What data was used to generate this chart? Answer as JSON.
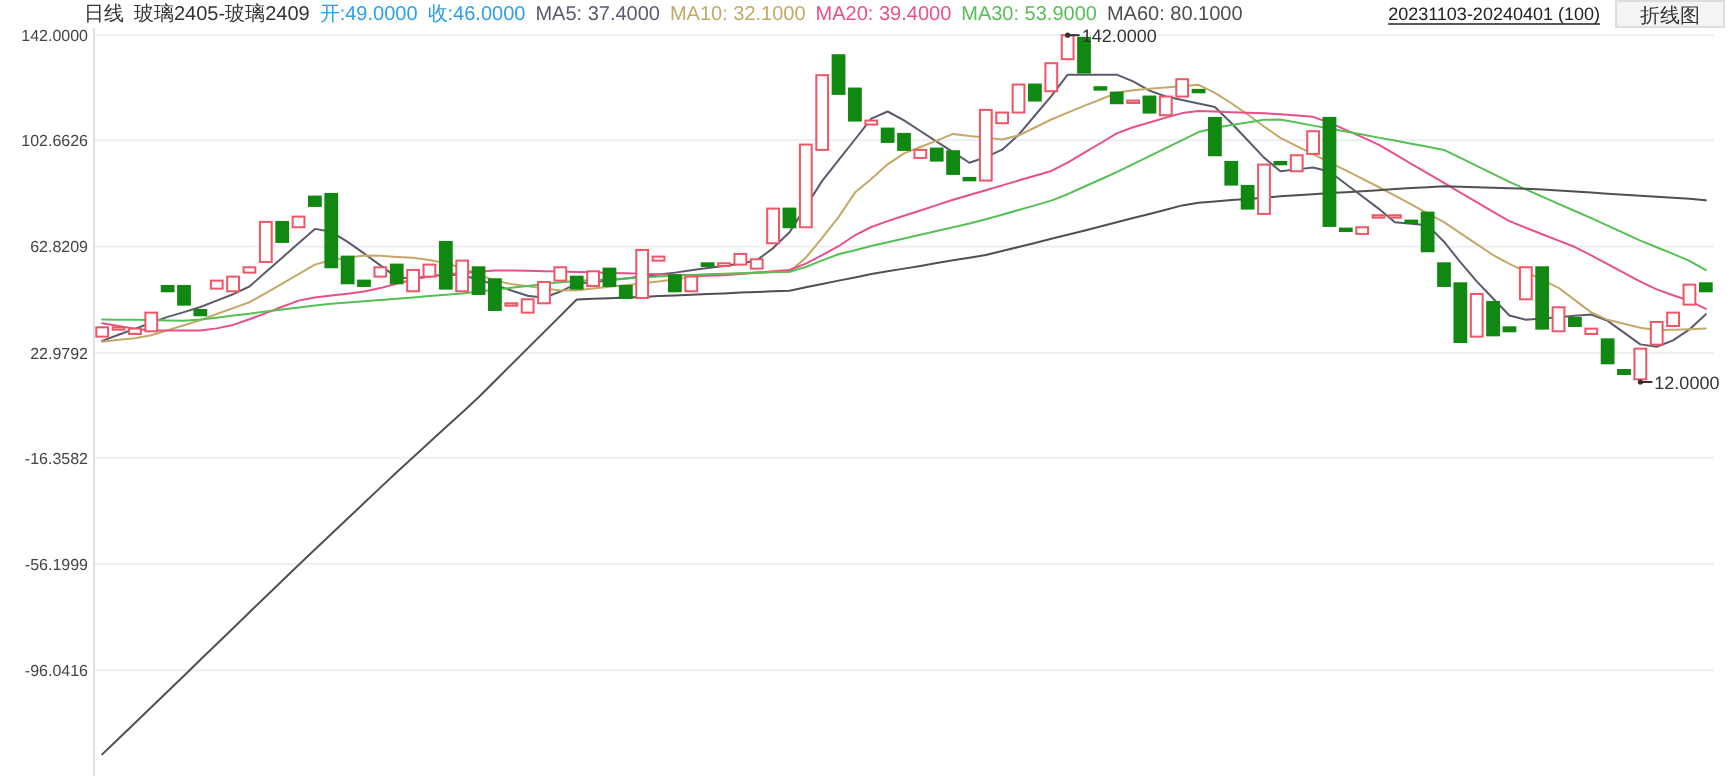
{
  "chart_data": {
    "type": "candlestick",
    "title": "日线",
    "subtitle": "玻璃2405-玻璃2409",
    "annotations": [
      "开:49.0000",
      "收:46.0000",
      "20231103-20240401 (100)",
      "折线图",
      "142.0000",
      "12.0000"
    ],
    "categories": [
      null,
      null,
      null,
      null,
      null,
      null,
      null,
      null,
      null,
      null,
      null,
      null,
      null,
      null,
      null,
      null,
      null,
      null,
      null,
      null,
      null,
      null,
      null,
      null,
      null,
      null,
      null,
      null,
      null,
      null,
      null,
      null,
      null,
      null,
      null,
      null,
      null,
      null,
      null,
      null,
      null,
      null,
      null,
      null,
      null,
      null,
      null,
      null,
      null,
      null,
      null,
      null,
      null,
      null,
      null,
      null,
      null,
      null,
      null,
      null,
      null,
      null,
      null,
      null,
      null,
      null,
      null,
      null,
      null,
      null,
      null,
      null,
      null,
      null,
      null,
      null,
      null,
      null,
      null,
      null,
      null,
      null,
      null,
      null,
      null,
      null,
      null,
      null,
      null,
      null,
      null,
      null,
      null,
      null,
      null,
      null,
      null,
      null,
      null
    ],
    "ylim": [
      -135.7,
      144.7
    ],
    "yticks": [
      {
        "value": 142,
        "label": "142.0000"
      },
      {
        "value": 102.6626,
        "label": "102.6626"
      },
      {
        "value": 62.8209,
        "label": "62.8209"
      },
      {
        "value": 22.9792,
        "label": "22.9792"
      },
      {
        "value": -16.3582,
        "label": "-16.3582"
      },
      {
        "value": -56.1999,
        "label": "-56.1999"
      },
      {
        "value": -96.0416,
        "label": "-96.0416"
      }
    ],
    "grid": "y",
    "series": [
      {
        "ohlc": [
          [
            29,
            32.5,
            29,
            32.5
          ],
          [
            32,
            32.5,
            32,
            32.5
          ],
          [
            30,
            32,
            30,
            32
          ],
          [
            31,
            38,
            31,
            38
          ],
          [
            48,
            48,
            46,
            46
          ],
          [
            48,
            48,
            41,
            41
          ],
          [
            39,
            39,
            37,
            37
          ],
          [
            47,
            50,
            47,
            50
          ],
          [
            46,
            51.5,
            46,
            51.5
          ],
          [
            53,
            55,
            53,
            55
          ],
          [
            57,
            72,
            57,
            72
          ],
          [
            72,
            72,
            64.5,
            64.5
          ],
          [
            70,
            74,
            70,
            74
          ],
          [
            81.5,
            81.5,
            78,
            78
          ],
          [
            82.5,
            82.5,
            55,
            55
          ],
          [
            59,
            59,
            49,
            49
          ],
          [
            50,
            50,
            48,
            48
          ],
          [
            51.5,
            55,
            51.5,
            55
          ],
          [
            56,
            56,
            49,
            49
          ],
          [
            46,
            54,
            46,
            54
          ],
          [
            51.5,
            56,
            51.5,
            56
          ],
          [
            64.5,
            64.5,
            47,
            47
          ],
          [
            46,
            57.5,
            46,
            57.5
          ],
          [
            55,
            55,
            45,
            45
          ],
          [
            50.5,
            50.5,
            39,
            39
          ],
          [
            41,
            41.5,
            41,
            41.5
          ],
          [
            38,
            43,
            38,
            43
          ],
          [
            41.5,
            49.5,
            41.5,
            49.5
          ],
          [
            50,
            55,
            50,
            55
          ],
          [
            51.5,
            51.5,
            47,
            47
          ],
          [
            48,
            53.5,
            48,
            53.5
          ],
          [
            54.5,
            54.5,
            48,
            48
          ],
          [
            48,
            48,
            43.5,
            43.5
          ],
          [
            43.5,
            61.5,
            43.5,
            61.5
          ],
          [
            57.5,
            59,
            57.5,
            59
          ],
          [
            52,
            52,
            46,
            46
          ],
          [
            46,
            51.5,
            46,
            51.5
          ],
          [
            56.5,
            56.5,
            55.5,
            55.5
          ],
          [
            55.5,
            56.5,
            55.5,
            56.5
          ],
          [
            56,
            60,
            56,
            60
          ],
          [
            54.5,
            58,
            54.5,
            58
          ],
          [
            64,
            77,
            64,
            77
          ],
          [
            77,
            77,
            70,
            70
          ],
          [
            70,
            101,
            70,
            101
          ],
          [
            99,
            127,
            99,
            127
          ],
          [
            134.5,
            134.5,
            120,
            120
          ],
          [
            122,
            122,
            110,
            110
          ],
          [
            108.5,
            110,
            108.5,
            110
          ],
          [
            107,
            107,
            102,
            102
          ],
          [
            105,
            105,
            99,
            99
          ],
          [
            96,
            99,
            96,
            99
          ],
          [
            99.5,
            99.5,
            95,
            95
          ],
          [
            98.5,
            98.5,
            90,
            90
          ],
          [
            88.5,
            88.5,
            88,
            88
          ],
          [
            87.5,
            114,
            87.5,
            114
          ],
          [
            109,
            113,
            109,
            113
          ],
          [
            113,
            123.5,
            113,
            123.5
          ],
          [
            123.5,
            123.5,
            117.5,
            117.5
          ],
          [
            121,
            131.5,
            121,
            131.5
          ],
          [
            133,
            142,
            133,
            142
          ],
          [
            141,
            141,
            128,
            128
          ],
          [
            122.5,
            122.5,
            122,
            122
          ],
          [
            120.5,
            120.5,
            116.5,
            116.5
          ],
          [
            117,
            117.5,
            117,
            117.5
          ],
          [
            119,
            119,
            113,
            113
          ],
          [
            112,
            119,
            112,
            119
          ],
          [
            119,
            125.5,
            119,
            125.5
          ],
          [
            121.5,
            121.5,
            121,
            121
          ],
          [
            111,
            111,
            97,
            97
          ],
          [
            94.5,
            94.5,
            86,
            86
          ],
          [
            85.5,
            85.5,
            77,
            77
          ],
          [
            75,
            93.5,
            75,
            93.5
          ],
          [
            94.5,
            94.5,
            94,
            94
          ],
          [
            91,
            97,
            91,
            97
          ],
          [
            97.5,
            106,
            97.5,
            106
          ],
          [
            111,
            111,
            70.5,
            70.5
          ],
          [
            69.5,
            69.5,
            69,
            69
          ],
          [
            67.5,
            70,
            67.5,
            70
          ],
          [
            74,
            74.5,
            74,
            74.5
          ],
          [
            74,
            74.5,
            74,
            74.5
          ],
          [
            72.5,
            72.5,
            72,
            72
          ],
          [
            75.5,
            75.5,
            61,
            61
          ],
          [
            56.5,
            56.5,
            48,
            48
          ],
          [
            49,
            49,
            27,
            27
          ],
          [
            29,
            45,
            29,
            45
          ],
          [
            42,
            42,
            29.5,
            29.5
          ],
          [
            32.5,
            32.5,
            31,
            31
          ],
          [
            43,
            55,
            43,
            55
          ],
          [
            55,
            55,
            32,
            32
          ],
          [
            31,
            40,
            31,
            40
          ],
          [
            36,
            36,
            33,
            33
          ],
          [
            30,
            32,
            30,
            32
          ],
          [
            28,
            28,
            19,
            19
          ],
          [
            16.5,
            16.5,
            15,
            15
          ],
          [
            13,
            24.5,
            12,
            24.5
          ],
          [
            26,
            34.5,
            26,
            34.5
          ],
          [
            33,
            38,
            33,
            38
          ],
          [
            41,
            48.5,
            41,
            48.5
          ],
          [
            49,
            49,
            46,
            46
          ]
        ],
        "colors": [
          "#ee5566",
          "#ee5566",
          "#ee5566",
          "#ee5566",
          "#118811",
          "#118811",
          "#118811",
          "#ee5566",
          "#ee5566",
          "#ee5566",
          "#ee5566",
          "#118811",
          "#ee5566",
          "#118811",
          "#118811",
          "#118811",
          "#118811",
          "#ee5566",
          "#118811",
          "#ee5566",
          "#ee5566",
          "#118811",
          "#ee5566",
          "#118811",
          "#118811",
          "#ee5566",
          "#ee5566",
          "#ee5566",
          "#ee5566",
          "#118811",
          "#ee5566",
          "#118811",
          "#118811",
          "#ee5566",
          "#ee5566",
          "#118811",
          "#ee5566",
          "#118811",
          "#ee5566",
          "#ee5566",
          "#ee5566",
          "#ee5566",
          "#118811",
          "#ee5566",
          "#ee5566",
          "#118811",
          "#118811",
          "#ee5566",
          "#118811",
          "#118811",
          "#ee5566",
          "#118811",
          "#118811",
          "#118811",
          "#ee5566",
          "#ee5566",
          "#ee5566",
          "#118811",
          "#ee5566",
          "#ee5566",
          "#118811",
          "#118811",
          "#118811",
          "#ee5566",
          "#118811",
          "#ee5566",
          "#ee5566",
          "#118811",
          "#118811",
          "#118811",
          "#118811",
          "#ee5566",
          "#118811",
          "#ee5566",
          "#ee5566",
          "#118811",
          "#118811",
          "#ee5566",
          "#ee5566",
          "#ee5566",
          "#118811",
          "#118811",
          "#118811",
          "#118811",
          "#ee5566",
          "#118811",
          "#118811",
          "#ee5566",
          "#118811",
          "#ee5566",
          "#118811",
          "#ee5566",
          "#118811",
          "#118811",
          "#ee5566",
          "#ee5566",
          "#ee5566",
          "#ee5566",
          "#118811"
        ]
      },
      {
        "type": "line",
        "name": "MA5: 37.4000",
        "color": "#5a5a6e",
        "values": [
          27.4,
          29.7,
          31.9,
          34.2,
          36.4,
          38.2,
          40.1,
          42.5,
          44.9,
          47.8,
          53.2,
          58.6,
          64.0,
          69.4,
          68.3,
          64.5,
          60.2,
          55.7,
          51.2,
          50.9,
          51.6,
          52.3,
          52.0,
          50.4,
          48.4,
          46.3,
          44.3,
          43.6,
          45.9,
          48.9,
          49.4,
          50.1,
          50.8,
          51.6,
          52.3,
          53.0,
          53.9,
          54.7,
          55.5,
          56.4,
          57.6,
          62.2,
          68.1,
          null,
          87.4,
          95.2,
          102.9,
          110.7,
          113.4,
          110.1,
          106.1,
          102.1,
          98.2,
          94.2,
          96.3,
          99.1,
          104.6,
          111.9,
          119.2,
          127.2,
          127.2,
          127.2,
          127.2,
          124.7,
          121.2,
          119.0,
          117.7,
          116.4,
          115.1,
          109.1,
          102.6,
          96.1,
          91.0,
          91.7,
          92.4,
          90.9,
          86.2,
          81.6,
          77.0,
          71.9,
          71.3,
          70.8,
          64.6,
          56.9,
          49.7,
          43.3,
          36.9,
          35.3,
          35.8,
          36.3,
          36.8,
          37.3,
          34.9,
          30.5,
          26.1,
          25.2,
          27.6,
          31.7,
          37.4
        ]
      },
      {
        "type": "line",
        "name": "MA10: 32.1000",
        "color": "#c4a868",
        "values": [
          27.1,
          27.8,
          28.4,
          29.5,
          31.4,
          33.3,
          35.2,
          37.5,
          39.7,
          41.9,
          45.3,
          48.9,
          52.4,
          56.0,
          57.7,
          58.6,
          59.4,
          59.3,
          58.9,
          58.6,
          57.7,
          56.5,
          54.7,
          52.3,
          50.0,
          48.7,
          47.9,
          47.1,
          46.3,
          46.4,
          47.0,
          47.7,
          48.3,
          49.0,
          49.7,
          50.5,
          51.2,
          52.0,
          52.4,
          52.7,
          52.9,
          53.1,
          53.3,
          58.6,
          66.0,
          73.8,
          83.0,
          88.1,
          93.6,
          97.7,
          100.1,
          102.5,
          105.0,
          104.2,
          103.7,
          102.9,
          104.4,
          107.4,
          110.4,
          113.0,
          115.5,
          117.9,
          120.4,
          121.4,
          121.9,
          122.4,
          122.9,
          123.4,
          120.4,
          116.5,
          112.3,
          107.8,
          103.5,
          100.4,
          97.4,
          94.3,
          91.3,
          88.2,
          85.1,
          81.9,
          78.6,
          75.2,
          71.9,
          67.8,
          63.7,
          59.6,
          56.3,
          53.3,
          50.3,
          47.3,
          42.7,
          38.1,
          35.3,
          33.8,
          32.3,
          31.4,
          31.6,
          31.8,
          32.1
        ]
      },
      {
        "type": "line",
        "name": "MA20: 39.4000",
        "color": "#e8508a",
        "values": [
          34.0,
          33.0,
          32.0,
          31.3,
          31.3,
          31.3,
          31.3,
          32.1,
          33.4,
          35.5,
          37.8,
          40.2,
          42.5,
          43.7,
          44.4,
          45.1,
          45.9,
          47.2,
          48.8,
          50.4,
          51.5,
          52.3,
          52.9,
          53.3,
          53.8,
          53.8,
          53.7,
          53.5,
          53.4,
          53.2,
          53.1,
          52.9,
          52.8,
          52.6,
          52.4,
          52.2,
          52.0,
          51.8,
          52.0,
          52.5,
          53.0,
          53.5,
          54.0,
          56.4,
          59.6,
          62.9,
          67.0,
          70.1,
          72.3,
          74.3,
          76.3,
          78.3,
          80.3,
          82.1,
          83.9,
          85.7,
          87.5,
          89.3,
          91.1,
          94.2,
          97.9,
          101.5,
          105.2,
          107.5,
          109.3,
          111.1,
          112.8,
          113.6,
          113.4,
          113.1,
          112.9,
          112.7,
          112.4,
          111.9,
          111.4,
          109.2,
          106.5,
          103.8,
          101.0,
          97.4,
          93.8,
          90.2,
          86.6,
          83.0,
          79.4,
          75.8,
          72.3,
          69.8,
          67.4,
          65.0,
          62.6,
          59.5,
          56.2,
          52.9,
          49.6,
          46.7,
          44.5,
          42.4,
          39.4
        ]
      },
      {
        "type": "line",
        "name": "MA30: 53.9000",
        "color": "#55c055",
        "values": [
          35.4,
          35.3,
          35.3,
          35.2,
          35.1,
          35.0,
          35.4,
          36.1,
          36.9,
          37.6,
          38.4,
          39.2,
          39.9,
          40.7,
          41.3,
          41.8,
          42.3,
          42.7,
          43.2,
          43.7,
          44.2,
          44.7,
          45.2,
          45.9,
          46.6,
          47.3,
          48.0,
          48.7,
          49.4,
          49.9,
          50.2,
          50.5,
          50.8,
          51.2,
          51.5,
          51.8,
          52.1,
          52.4,
          52.6,
          52.8,
          53.0,
          53.2,
          53.3,
          55.1,
          57.6,
          59.9,
          61.4,
          63.0,
          64.4,
          65.8,
          67.2,
          68.6,
          70.0,
          71.4,
          73.0,
          74.7,
          76.5,
          78.2,
          80.0,
          82.4,
          85.2,
          87.9,
          90.7,
          93.7,
          96.7,
          99.7,
          102.7,
          105.7,
          107.2,
          108.3,
          109.3,
          110.3,
          110.4,
          109.3,
          108.1,
          107.0,
          105.9,
          104.8,
          103.6,
          102.5,
          101.3,
          100.2,
          99.0,
          96.0,
          93.0,
          90.0,
          87.0,
          84.2,
          81.5,
          78.8,
          76.1,
          73.4,
          70.6,
          67.8,
          65.0,
          62.5,
          60.0,
          57.4,
          53.9
        ]
      },
      {
        "type": "line",
        "name": "MA60: 80.1000",
        "color": "#505050",
        "values": [
          -127.6,
          -121.7,
          -115.8,
          -109.9,
          -104.0,
          -98.1,
          -92.1,
          -86.2,
          -80.3,
          -74.3,
          -68.4,
          -62.5,
          -56.6,
          -50.8,
          -45.0,
          -39.2,
          -33.4,
          -27.6,
          -21.8,
          -16.2,
          -10.6,
          -5.0,
          0.6,
          6.3,
          12.4,
          18.5,
          24.6,
          30.7,
          36.8,
          42.9,
          43.2,
          43.4,
          43.7,
          43.9,
          44.2,
          44.4,
          44.7,
          45.0,
          45.2,
          45.5,
          45.7,
          46.0,
          46.2,
          47.5,
          48.7,
          50.0,
          51.2,
          52.5,
          53.5,
          54.5,
          55.5,
          56.6,
          57.6,
          58.6,
          59.6,
          61.1,
          62.6,
          64.1,
          65.7,
          67.2,
          68.7,
          70.3,
          71.9,
          73.5,
          75.0,
          76.6,
          78.2,
          79.2,
          79.7,
          80.2,
          80.6,
          81.1,
          81.6,
          82.0,
          82.4,
          82.8,
          83.1,
          83.5,
          83.9,
          84.3,
          84.7,
          85.0,
          85.4,
          85.2,
          85.0,
          84.8,
          84.6,
          84.4,
          84.2,
          83.8,
          83.4,
          83.0,
          82.6,
          82.2,
          81.8,
          81.4,
          81.1,
          80.7,
          80.1
        ]
      }
    ]
  }
}
